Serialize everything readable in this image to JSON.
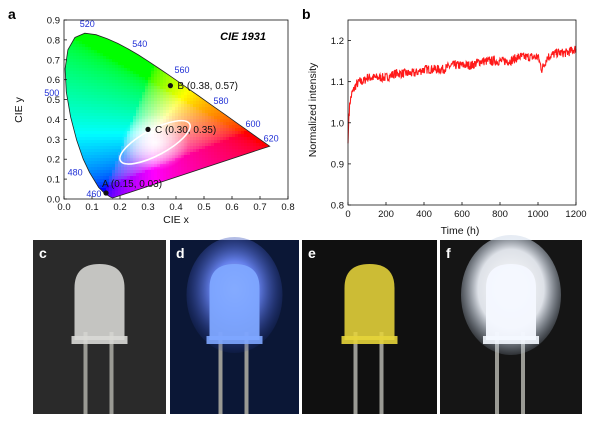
{
  "panels": {
    "a": "a",
    "b": "b",
    "c": "c",
    "d": "d",
    "e": "e",
    "f": "f"
  },
  "chart_data": [
    {
      "type": "scatter",
      "panel": "a",
      "title": "CIE 1931",
      "xlabel": "CIE x",
      "ylabel": "CIE y",
      "xlim": [
        0.0,
        0.8
      ],
      "ylim": [
        0.0,
        0.9
      ],
      "xticks": [
        "0.0",
        "0.1",
        "0.2",
        "0.3",
        "0.4",
        "0.5",
        "0.6",
        "0.7",
        "0.8"
      ],
      "yticks": [
        "0.0",
        "0.1",
        "0.2",
        "0.3",
        "0.4",
        "0.5",
        "0.6",
        "0.7",
        "0.8",
        "0.9"
      ],
      "wavelength_labels": [
        {
          "label": "460",
          "x": 0.144,
          "y": 0.0297
        },
        {
          "label": "480",
          "x": 0.0913,
          "y": 0.1327
        },
        {
          "label": "500",
          "x": 0.0082,
          "y": 0.5384
        },
        {
          "label": "520",
          "x": 0.0743,
          "y": 0.8338
        },
        {
          "label": "540",
          "x": 0.2296,
          "y": 0.7543
        },
        {
          "label": "560",
          "x": 0.3731,
          "y": 0.6245
        },
        {
          "label": "580",
          "x": 0.5125,
          "y": 0.4866
        },
        {
          "label": "600",
          "x": 0.627,
          "y": 0.3725
        },
        {
          "label": "620",
          "x": 0.6915,
          "y": 0.3083
        }
      ],
      "points": [
        {
          "label": "A (0.15, 0.03)",
          "x": 0.15,
          "y": 0.03
        },
        {
          "label": "B (0.38, 0.57)",
          "x": 0.38,
          "y": 0.57
        },
        {
          "label": "C (0.30, 0.35)",
          "x": 0.3,
          "y": 0.35
        }
      ],
      "spectral_locus": [
        [
          0.1741,
          0.005
        ],
        [
          0.1666,
          0.0089
        ],
        [
          0.144,
          0.0297
        ],
        [
          0.1241,
          0.0578
        ],
        [
          0.0913,
          0.1327
        ],
        [
          0.0687,
          0.2007
        ],
        [
          0.0454,
          0.295
        ],
        [
          0.0235,
          0.4127
        ],
        [
          0.0082,
          0.5384
        ],
        [
          0.0039,
          0.6548
        ],
        [
          0.0139,
          0.7502
        ],
        [
          0.0389,
          0.812
        ],
        [
          0.0743,
          0.8338
        ],
        [
          0.1142,
          0.8262
        ],
        [
          0.1547,
          0.8059
        ],
        [
          0.1929,
          0.7816
        ],
        [
          0.2296,
          0.7543
        ],
        [
          0.2658,
          0.7243
        ],
        [
          0.3016,
          0.6923
        ],
        [
          0.3373,
          0.6589
        ],
        [
          0.3731,
          0.6245
        ],
        [
          0.4087,
          0.5896
        ],
        [
          0.4441,
          0.5547
        ],
        [
          0.4788,
          0.5202
        ],
        [
          0.5125,
          0.4866
        ],
        [
          0.5448,
          0.4544
        ],
        [
          0.5752,
          0.4242
        ],
        [
          0.6029,
          0.3965
        ],
        [
          0.627,
          0.3725
        ],
        [
          0.6482,
          0.3514
        ],
        [
          0.6658,
          0.334
        ],
        [
          0.6915,
          0.3083
        ],
        [
          0.7347,
          0.2653
        ]
      ],
      "ellipse": {
        "cx": 0.325,
        "cy": 0.285,
        "rx": 0.14,
        "ry": 0.065,
        "angle_deg": 28
      }
    },
    {
      "type": "line",
      "panel": "b",
      "xlabel": "Time (h)",
      "ylabel": "Normalized intensity",
      "xlim": [
        0,
        1200
      ],
      "ylim": [
        0.8,
        1.25
      ],
      "xticks": [
        "0",
        "200",
        "400",
        "600",
        "800",
        "1000",
        "1200"
      ],
      "yticks": [
        "0.8",
        "0.9",
        "1.0",
        "1.1",
        "1.2"
      ],
      "series_color": "#ff1a1a",
      "series": [
        {
          "x": [
            0,
            5,
            10,
            20,
            40,
            60,
            80,
            100,
            150,
            200,
            250,
            300,
            350,
            400,
            450,
            500,
            550,
            600,
            650,
            700,
            750,
            800,
            850,
            900,
            950,
            1000,
            1020,
            1050,
            1100,
            1150,
            1200
          ],
          "values": [
            0.95,
            1.02,
            1.05,
            1.07,
            1.09,
            1.1,
            1.1,
            1.11,
            1.11,
            1.11,
            1.12,
            1.12,
            1.12,
            1.13,
            1.13,
            1.13,
            1.14,
            1.14,
            1.14,
            1.15,
            1.15,
            1.15,
            1.15,
            1.16,
            1.16,
            1.16,
            1.13,
            1.16,
            1.17,
            1.17,
            1.18
          ]
        }
      ]
    }
  ],
  "photos": [
    {
      "panel": "c",
      "bg": "#2a2a2a",
      "lens": "#d9d9d6",
      "glow": "none"
    },
    {
      "panel": "d",
      "bg": "#0b1736",
      "lens": "#7ea6ff",
      "glow": "blue"
    },
    {
      "panel": "e",
      "bg": "#101010",
      "lens": "#e6d43a",
      "glow": "none"
    },
    {
      "panel": "f",
      "bg": "#151515",
      "lens": "#f4f8ff",
      "glow": "white"
    }
  ]
}
